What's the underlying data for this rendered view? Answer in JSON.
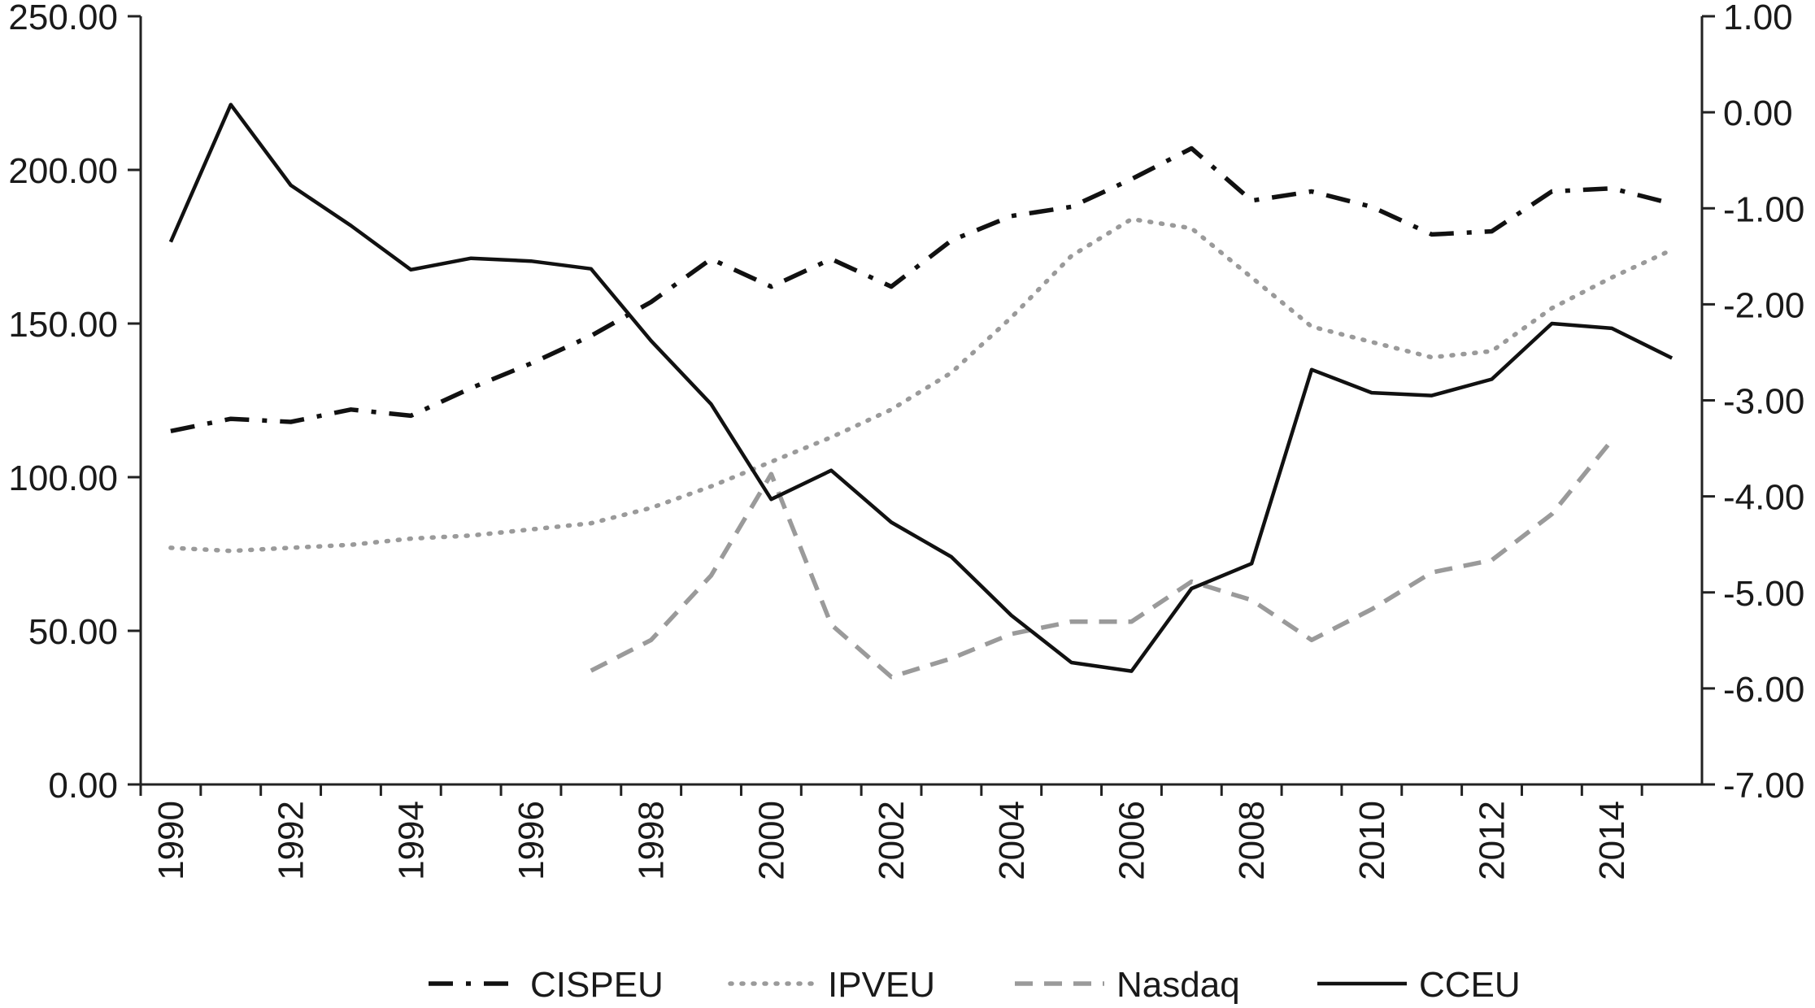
{
  "chart_data": {
    "type": "line",
    "title": "",
    "xlabel": "",
    "ylabel": "",
    "y2label": "",
    "grid": false,
    "legend_position": "bottom",
    "x_tick_labels": [
      "1990",
      "1992",
      "1994",
      "1996",
      "1998",
      "2000",
      "2002",
      "2004",
      "2006",
      "2008",
      "2010",
      "2012",
      "2014"
    ],
    "y_left_tick_labels": [
      "0.00",
      "50.00",
      "100.00",
      "150.00",
      "200.00",
      "250.00"
    ],
    "y_right_tick_labels": [
      "-7.00",
      "-6.00",
      "-5.00",
      "-4.00",
      "-3.00",
      "-2.00",
      "-1.00",
      "0.00",
      "1.00"
    ],
    "ylim_left": [
      0,
      250
    ],
    "ylim_right": [
      -7,
      1
    ],
    "xlim": [
      1989.5,
      2015.5
    ],
    "series": [
      {
        "name": "CISPEU",
        "axis": "left",
        "style": "dash-dot",
        "color": "#111111",
        "x": [
          1990,
          1991,
          1992,
          1993,
          1994,
          1995,
          1996,
          1997,
          1998,
          1999,
          2000,
          2001,
          2002,
          2003,
          2004,
          2005,
          2006,
          2007,
          2008,
          2009,
          2010,
          2011,
          2012,
          2013,
          2014,
          2015
        ],
        "values": [
          115,
          119,
          118,
          122,
          120,
          129,
          137,
          146,
          157,
          171,
          162,
          171,
          162,
          177,
          185,
          188,
          197,
          207,
          190,
          193,
          188,
          179,
          180,
          193,
          194,
          189
        ]
      },
      {
        "name": "IPVEU",
        "axis": "left",
        "style": "dotted",
        "color": "#9a9a9a",
        "x": [
          1990,
          1991,
          1992,
          1993,
          1994,
          1995,
          1996,
          1997,
          1998,
          1999,
          2000,
          2001,
          2002,
          2003,
          2004,
          2005,
          2006,
          2007,
          2008,
          2009,
          2010,
          2011,
          2012,
          2013,
          2014,
          2015
        ],
        "values": [
          77,
          76,
          77,
          78,
          80,
          81,
          83,
          85,
          90,
          97,
          105,
          113,
          122,
          134,
          152,
          172,
          184,
          181,
          165,
          149,
          144,
          139,
          141,
          155,
          165,
          174
        ]
      },
      {
        "name": "Nasdaq",
        "axis": "left",
        "style": "dashed",
        "color": "#9a9a9a",
        "x": [
          1997,
          1998,
          1999,
          2000,
          2001,
          2002,
          2003,
          2004,
          2005,
          2006,
          2007,
          2008,
          2009,
          2010,
          2011,
          2012,
          2013,
          2014
        ],
        "values": [
          37,
          47,
          68,
          101,
          52,
          35,
          41,
          49,
          53,
          53,
          66,
          60,
          47,
          57,
          69,
          73,
          88,
          112
        ]
      },
      {
        "name": "CCEU",
        "axis": "right",
        "style": "solid",
        "color": "#111111",
        "x": [
          1990,
          1991,
          1992,
          1993,
          1994,
          1995,
          1996,
          1997,
          1998,
          1999,
          2000,
          2001,
          2002,
          2003,
          2004,
          2005,
          2006,
          2007,
          2008,
          2009,
          2010,
          2011,
          2012,
          2013,
          2014,
          2015
        ],
        "values": [
          -1.35,
          0.08,
          -0.76,
          -1.18,
          -1.64,
          -1.52,
          -1.55,
          -1.63,
          -2.38,
          -3.04,
          -4.03,
          -3.73,
          -4.27,
          -4.63,
          -5.24,
          -5.73,
          -5.82,
          -4.96,
          -4.7,
          -2.68,
          -2.92,
          -2.95,
          -2.78,
          -2.2,
          -2.25,
          -2.56
        ]
      }
    ]
  }
}
